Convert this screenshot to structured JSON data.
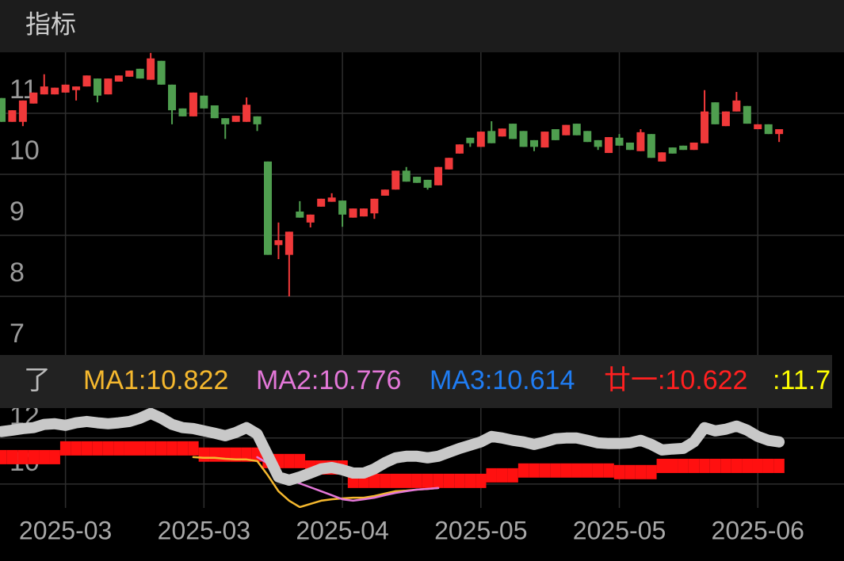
{
  "header": {
    "title": "指标"
  },
  "chart_data": {
    "type": "candlestick",
    "categories": [
      null,
      null,
      null,
      null,
      null,
      null,
      "2025-03",
      null,
      null,
      null,
      null,
      null,
      null,
      null,
      null,
      null,
      null,
      null,
      null,
      "2025-03",
      null,
      null,
      null,
      null,
      null,
      null,
      null,
      null,
      null,
      null,
      null,
      null,
      "2025-04",
      null,
      null,
      null,
      null,
      null,
      null,
      null,
      null,
      null,
      null,
      null,
      null,
      "2025-05",
      null,
      null,
      null,
      null,
      null,
      null,
      null,
      null,
      null,
      null,
      null,
      null,
      "2025-05",
      null,
      null,
      null,
      null,
      null,
      null,
      null,
      null,
      null,
      null,
      null,
      null,
      "2025-06",
      null,
      null
    ],
    "ohlc": [
      [
        11.25,
        11.25,
        10.86,
        10.86
      ],
      [
        10.86,
        11.05,
        10.86,
        11.05
      ],
      [
        10.86,
        11.21,
        10.79,
        11.21
      ],
      [
        11.16,
        11.34,
        11.16,
        11.34
      ],
      [
        11.31,
        11.64,
        11.31,
        11.44
      ],
      [
        11.31,
        11.42,
        11.31,
        11.42
      ],
      [
        11.34,
        11.47,
        11.34,
        11.47
      ],
      [
        11.38,
        11.44,
        11.21,
        11.44
      ],
      [
        11.44,
        11.62,
        11.44,
        11.62
      ],
      [
        11.57,
        11.57,
        11.18,
        11.29
      ],
      [
        11.31,
        11.57,
        11.31,
        11.57
      ],
      [
        11.52,
        11.62,
        11.52,
        11.62
      ],
      [
        11.6,
        11.7,
        11.6,
        11.7
      ],
      [
        11.73,
        11.73,
        11.57,
        11.57
      ],
      [
        11.55,
        11.99,
        11.55,
        11.9
      ],
      [
        11.86,
        11.86,
        11.47,
        11.47
      ],
      [
        11.47,
        11.47,
        10.82,
        11.05
      ],
      [
        11.08,
        11.08,
        10.95,
        10.95
      ],
      [
        10.95,
        11.34,
        10.95,
        11.34
      ],
      [
        11.29,
        11.29,
        11.08,
        11.08
      ],
      [
        11.13,
        11.13,
        10.92,
        10.92
      ],
      [
        10.92,
        10.92,
        10.58,
        10.82
      ],
      [
        10.86,
        10.96,
        10.86,
        10.96
      ],
      [
        10.86,
        11.26,
        10.86,
        11.14
      ],
      [
        10.95,
        10.95,
        10.71,
        10.82
      ],
      [
        10.21,
        10.21,
        8.68,
        8.68
      ],
      [
        8.84,
        9.21,
        8.61,
        8.92
      ],
      [
        8.68,
        9.06,
        8.0,
        9.06
      ],
      [
        9.39,
        9.56,
        9.29,
        9.29
      ],
      [
        9.21,
        9.34,
        9.13,
        9.34
      ],
      [
        9.47,
        9.6,
        9.47,
        9.6
      ],
      [
        9.55,
        9.69,
        9.55,
        9.62
      ],
      [
        9.57,
        9.57,
        9.14,
        9.34
      ],
      [
        9.29,
        9.44,
        9.29,
        9.44
      ],
      [
        9.31,
        9.44,
        9.31,
        9.44
      ],
      [
        9.36,
        9.6,
        9.27,
        9.6
      ],
      [
        9.65,
        9.75,
        9.65,
        9.75
      ],
      [
        9.75,
        10.06,
        9.75,
        10.06
      ],
      [
        10.06,
        10.12,
        9.88,
        9.88
      ],
      [
        9.96,
        9.96,
        9.86,
        9.86
      ],
      [
        9.91,
        9.91,
        9.75,
        9.78
      ],
      [
        9.82,
        10.12,
        9.82,
        10.12
      ],
      [
        10.08,
        10.27,
        10.08,
        10.27
      ],
      [
        10.34,
        10.49,
        10.34,
        10.49
      ],
      [
        10.6,
        10.6,
        10.45,
        10.51
      ],
      [
        10.45,
        10.7,
        10.45,
        10.7
      ],
      [
        10.71,
        10.87,
        10.51,
        10.51
      ],
      [
        10.62,
        10.75,
        10.62,
        10.75
      ],
      [
        10.83,
        10.83,
        10.58,
        10.58
      ],
      [
        10.71,
        10.71,
        10.45,
        10.45
      ],
      [
        10.56,
        10.56,
        10.38,
        10.45
      ],
      [
        10.44,
        10.7,
        10.44,
        10.7
      ],
      [
        10.74,
        10.74,
        10.56,
        10.56
      ],
      [
        10.64,
        10.81,
        10.64,
        10.81
      ],
      [
        10.83,
        10.83,
        10.64,
        10.64
      ],
      [
        10.71,
        10.71,
        10.53,
        10.53
      ],
      [
        10.56,
        10.56,
        10.4,
        10.45
      ],
      [
        10.35,
        10.61,
        10.35,
        10.61
      ],
      [
        10.6,
        10.66,
        10.47,
        10.47
      ],
      [
        10.52,
        10.52,
        10.4,
        10.4
      ],
      [
        10.38,
        10.74,
        10.38,
        10.69
      ],
      [
        10.66,
        10.66,
        10.27,
        10.27
      ],
      [
        10.21,
        10.36,
        10.21,
        10.36
      ],
      [
        10.44,
        10.44,
        10.34,
        10.34
      ],
      [
        10.47,
        10.47,
        10.4,
        10.4
      ],
      [
        10.4,
        10.52,
        10.4,
        10.52
      ],
      [
        10.51,
        11.38,
        10.51,
        11.03
      ],
      [
        11.18,
        11.18,
        10.82,
        10.82
      ],
      [
        10.79,
        11.03,
        10.79,
        11.03
      ],
      [
        11.03,
        11.35,
        11.03,
        11.21
      ],
      [
        11.12,
        11.12,
        10.83,
        10.83
      ],
      [
        10.74,
        10.82,
        10.74,
        10.82
      ],
      [
        10.82,
        10.82,
        10.66,
        10.66
      ],
      [
        10.66,
        10.74,
        10.53,
        10.74
      ]
    ],
    "up_color": "#f0393a",
    "down_color": "#4f9e4f",
    "ylim": [
      7,
      12
    ],
    "yticks": [
      7,
      8,
      9,
      10,
      11
    ],
    "grid": true
  },
  "legend": [
    {
      "label": "了",
      "color": "#bbbbbb"
    },
    {
      "label": "MA1:10.822",
      "color": "#f5b82e"
    },
    {
      "label": "MA2:10.776",
      "color": "#e377d8"
    },
    {
      "label": "MA3:10.614",
      "color": "#1f7cf2"
    },
    {
      "label": "廿一:10.622",
      "color": "#ff2020"
    },
    {
      "label": ":11.7",
      "color": "#ffff00"
    }
  ],
  "indicator_panel": {
    "type": "line",
    "ylim": [
      9,
      13.3
    ],
    "yticks": [
      10,
      12
    ],
    "grid": true,
    "series": [
      {
        "color": "#ff1010",
        "style": "step",
        "values": [
          11.17,
          11.17,
          11.17,
          11.17,
          11.17,
          11.17,
          11.55,
          11.55,
          11.55,
          11.55,
          11.55,
          11.55,
          11.55,
          11.55,
          11.55,
          11.55,
          11.55,
          11.55,
          11.55,
          11.28,
          11.28,
          11.28,
          11.28,
          11.28,
          11.28,
          11.0,
          11.0,
          11.0,
          11.0,
          10.72,
          10.72,
          10.72,
          10.72,
          10.14,
          10.14,
          10.14,
          10.14,
          10.14,
          10.14,
          10.14,
          10.14,
          10.14,
          10.14,
          10.14,
          10.14,
          10.14,
          10.38,
          10.38,
          10.38,
          10.59,
          10.59,
          10.59,
          10.59,
          10.59,
          10.59,
          10.59,
          10.59,
          10.59,
          10.52,
          10.52,
          10.52,
          10.52,
          10.79,
          10.79,
          10.79,
          10.79,
          10.79,
          10.79,
          10.79,
          10.79,
          10.79,
          10.79,
          10.79,
          10.79
        ]
      },
      {
        "color": "#f5b82e",
        "style": "line",
        "values": [
          null,
          null,
          null,
          null,
          null,
          null,
          null,
          null,
          null,
          null,
          null,
          null,
          null,
          null,
          null,
          null,
          null,
          null,
          11.17,
          11.14,
          11.14,
          11.1,
          11.07,
          11.07,
          11.0,
          10.38,
          9.69,
          9.28,
          9.0,
          9.14,
          9.28,
          9.34,
          9.38,
          9.41,
          9.41,
          9.48,
          9.59,
          9.69,
          9.72,
          9.76,
          9.79,
          9.83,
          null,
          null,
          null,
          null,
          null,
          null,
          null,
          null,
          null,
          null,
          null,
          null,
          null,
          null,
          null,
          null,
          null,
          null,
          null,
          null,
          null,
          null,
          null,
          null,
          null,
          null,
          null,
          null,
          null,
          null,
          null,
          null
        ]
      },
      {
        "color": "#e377d8",
        "style": "line",
        "values": [
          null,
          null,
          null,
          null,
          null,
          null,
          null,
          null,
          null,
          null,
          null,
          null,
          null,
          null,
          null,
          null,
          null,
          null,
          null,
          null,
          null,
          null,
          null,
          null,
          11.17,
          10.9,
          10.45,
          10.21,
          10.03,
          9.86,
          9.69,
          9.52,
          9.34,
          9.28,
          9.34,
          9.41,
          9.52,
          9.62,
          9.69,
          9.76,
          9.79,
          9.83,
          null,
          null,
          null,
          null,
          null,
          null,
          null,
          null,
          null,
          null,
          null,
          null,
          null,
          null,
          null,
          null,
          null,
          null,
          null,
          null,
          null,
          null,
          null,
          null,
          null,
          null,
          null,
          null,
          null,
          null,
          null,
          null
        ]
      },
      {
        "color": "#c8c8c8",
        "style": "thick",
        "values": [
          12.28,
          12.34,
          12.41,
          12.45,
          12.59,
          12.62,
          12.55,
          12.66,
          12.72,
          12.66,
          12.62,
          12.66,
          12.72,
          12.86,
          13.07,
          12.86,
          12.59,
          12.45,
          12.41,
          12.31,
          12.21,
          12.1,
          12.24,
          12.45,
          12.17,
          11.24,
          10.31,
          10.17,
          10.31,
          10.48,
          10.66,
          10.72,
          10.62,
          10.48,
          10.48,
          10.66,
          10.93,
          11.14,
          11.21,
          11.21,
          11.14,
          11.21,
          11.38,
          11.55,
          11.69,
          11.83,
          12.07,
          12.0,
          11.9,
          11.83,
          11.72,
          11.83,
          11.97,
          12.0,
          12.0,
          11.9,
          11.79,
          11.76,
          11.76,
          11.79,
          11.9,
          11.72,
          11.48,
          11.52,
          11.55,
          11.83,
          12.45,
          12.31,
          12.38,
          12.52,
          12.34,
          12.07,
          11.9,
          11.83
        ]
      }
    ]
  }
}
